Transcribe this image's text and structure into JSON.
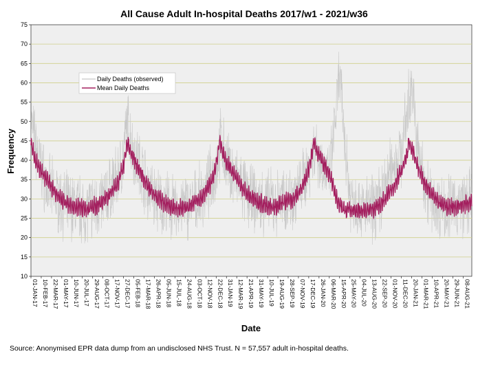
{
  "chart_data": {
    "type": "line",
    "title": "All Cause Adult In-hospital Deaths 2017/w1 - 2021/w36",
    "xlabel": "Date",
    "ylabel": "Frequency",
    "ylim": [
      10,
      75
    ],
    "yticks": [
      10,
      15,
      20,
      25,
      30,
      35,
      40,
      45,
      50,
      55,
      60,
      65,
      70,
      75
    ],
    "xlim": [
      "2017-01-01",
      "2021-09-11"
    ],
    "xtick_labels": [
      "01-JAN-17",
      "10-FEB-17",
      "22-MAR-17",
      "01-MAY-17",
      "10-JUN-17",
      "20-JUL-17",
      "29-AUG-17",
      "08-OCT-17",
      "17-NOV-17",
      "27-DEC-17",
      "05-FEB-18",
      "17-MAR-18",
      "26-APR-18",
      "05-JUN-18",
      "15-JUL-18",
      "24-AUG-18",
      "03-OCT-18",
      "12-NOV-18",
      "22-DEC-18",
      "31-JAN-19",
      "12-MAR-19",
      "21-APR-19",
      "31-MAY-19",
      "10-JUL-19",
      "19-AUG-19",
      "28-SEP-19",
      "07-NOV-19",
      "17-DEC-19",
      "26-JAN-20",
      "06-MAR-20",
      "15-APR-20",
      "25-MAY-20",
      "04-JUL-20",
      "13-AUG-20",
      "22-SEP-20",
      "01-NOV-20",
      "11-DEC-20",
      "20-JAN-21",
      "01-MAR-21",
      "10-APR-21",
      "20-MAY-21",
      "29-JUN-21",
      "08-AUG-21"
    ],
    "grid": "horizontal",
    "legend_position": "top-left",
    "series": [
      {
        "name": "Daily Deaths (observed)",
        "color": "#c8c8c8",
        "description_points": [
          [
            "2017-01-01",
            50
          ],
          [
            "2017-01-20",
            43
          ],
          [
            "2017-02-10",
            38
          ],
          [
            "2017-03-05",
            33
          ],
          [
            "2017-04-01",
            31
          ],
          [
            "2017-05-01",
            29
          ],
          [
            "2017-06-01",
            28
          ],
          [
            "2017-07-01",
            28
          ],
          [
            "2017-08-01",
            27
          ],
          [
            "2017-09-01",
            28
          ],
          [
            "2017-10-01",
            29
          ],
          [
            "2017-11-01",
            32
          ],
          [
            "2017-12-01",
            35
          ],
          [
            "2017-12-27",
            41
          ],
          [
            "2018-01-10",
            50
          ],
          [
            "2018-02-05",
            42
          ],
          [
            "2018-03-05",
            38
          ],
          [
            "2018-04-01",
            33
          ],
          [
            "2018-05-01",
            30
          ],
          [
            "2018-06-01",
            29
          ],
          [
            "2018-07-15",
            27
          ],
          [
            "2018-08-24",
            28
          ],
          [
            "2018-10-03",
            29
          ],
          [
            "2018-11-12",
            32
          ],
          [
            "2018-12-22",
            38
          ],
          [
            "2019-01-10",
            45
          ],
          [
            "2019-02-01",
            39
          ],
          [
            "2019-03-12",
            35
          ],
          [
            "2019-04-21",
            31
          ],
          [
            "2019-05-31",
            29
          ],
          [
            "2019-07-10",
            29
          ],
          [
            "2019-08-19",
            29
          ],
          [
            "2019-09-28",
            30
          ],
          [
            "2019-11-07",
            32
          ],
          [
            "2019-12-17",
            38
          ],
          [
            "2020-01-10",
            44
          ],
          [
            "2020-02-05",
            39
          ],
          [
            "2020-03-06",
            35
          ],
          [
            "2020-04-15",
            62
          ],
          [
            "2020-05-01",
            48
          ],
          [
            "2020-05-25",
            31
          ],
          [
            "2020-07-04",
            28
          ],
          [
            "2020-08-13",
            27
          ],
          [
            "2020-09-22",
            30
          ],
          [
            "2020-11-01",
            38
          ],
          [
            "2020-12-11",
            42
          ],
          [
            "2021-01-20",
            60
          ],
          [
            "2021-02-10",
            44
          ],
          [
            "2021-03-01",
            37
          ],
          [
            "2021-04-10",
            29
          ],
          [
            "2021-05-20",
            28
          ],
          [
            "2021-06-29",
            28
          ],
          [
            "2021-08-08",
            29
          ],
          [
            "2021-09-11",
            29
          ]
        ]
      },
      {
        "name": "Mean Daily Deaths",
        "color": "#a31e5e",
        "points": [
          [
            "2017-01-01",
            45
          ],
          [
            "2017-01-15",
            41
          ],
          [
            "2017-02-01",
            38
          ],
          [
            "2017-02-20",
            36
          ],
          [
            "2017-03-15",
            34
          ],
          [
            "2017-04-10",
            31
          ],
          [
            "2017-05-01",
            30
          ],
          [
            "2017-06-01",
            28
          ],
          [
            "2017-07-01",
            28
          ],
          [
            "2017-08-01",
            27.5
          ],
          [
            "2017-09-01",
            28
          ],
          [
            "2017-10-01",
            29
          ],
          [
            "2017-11-01",
            31
          ],
          [
            "2017-11-25",
            33
          ],
          [
            "2017-12-15",
            36
          ],
          [
            "2018-01-01",
            40
          ],
          [
            "2018-01-10",
            45
          ],
          [
            "2018-01-25",
            42
          ],
          [
            "2018-02-15",
            39
          ],
          [
            "2018-03-10",
            36
          ],
          [
            "2018-04-01",
            33
          ],
          [
            "2018-05-01",
            31
          ],
          [
            "2018-06-01",
            29
          ],
          [
            "2018-07-01",
            28
          ],
          [
            "2018-08-01",
            27.5
          ],
          [
            "2018-09-01",
            28
          ],
          [
            "2018-10-01",
            29
          ],
          [
            "2018-11-01",
            31
          ],
          [
            "2018-12-01",
            34
          ],
          [
            "2018-12-20",
            38
          ],
          [
            "2019-01-05",
            45
          ],
          [
            "2019-01-20",
            41
          ],
          [
            "2019-02-15",
            38
          ],
          [
            "2019-03-15",
            35
          ],
          [
            "2019-04-15",
            32
          ],
          [
            "2019-05-15",
            30
          ],
          [
            "2019-06-15",
            29
          ],
          [
            "2019-07-15",
            28
          ],
          [
            "2019-08-15",
            28
          ],
          [
            "2019-09-15",
            29
          ],
          [
            "2019-10-15",
            30
          ],
          [
            "2019-11-15",
            32
          ],
          [
            "2019-12-10",
            36
          ],
          [
            "2019-12-28",
            41
          ],
          [
            "2020-01-05",
            45
          ],
          [
            "2020-01-20",
            42
          ],
          [
            "2020-02-15",
            39
          ],
          [
            "2020-03-10",
            36
          ],
          [
            "2020-03-25",
            32
          ],
          [
            "2020-04-10",
            29
          ],
          [
            "2020-05-10",
            27
          ],
          [
            "2020-06-10",
            27
          ],
          [
            "2020-07-10",
            27
          ],
          [
            "2020-08-10",
            27
          ],
          [
            "2020-09-10",
            28
          ],
          [
            "2020-10-10",
            30
          ],
          [
            "2020-11-10",
            33
          ],
          [
            "2020-12-10",
            37
          ],
          [
            "2021-01-01",
            41
          ],
          [
            "2021-01-10",
            45
          ],
          [
            "2021-01-25",
            42
          ],
          [
            "2021-02-15",
            38
          ],
          [
            "2021-03-10",
            34
          ],
          [
            "2021-04-10",
            31
          ],
          [
            "2021-05-10",
            29
          ],
          [
            "2021-06-10",
            28
          ],
          [
            "2021-07-10",
            28
          ],
          [
            "2021-08-10",
            28.5
          ],
          [
            "2021-09-11",
            29
          ]
        ]
      }
    ]
  },
  "footer": {
    "source": "Source: Anonymised EPR data dump from an undisclosed NHS Trust. N = 57,557 adult in-hospital deaths."
  }
}
